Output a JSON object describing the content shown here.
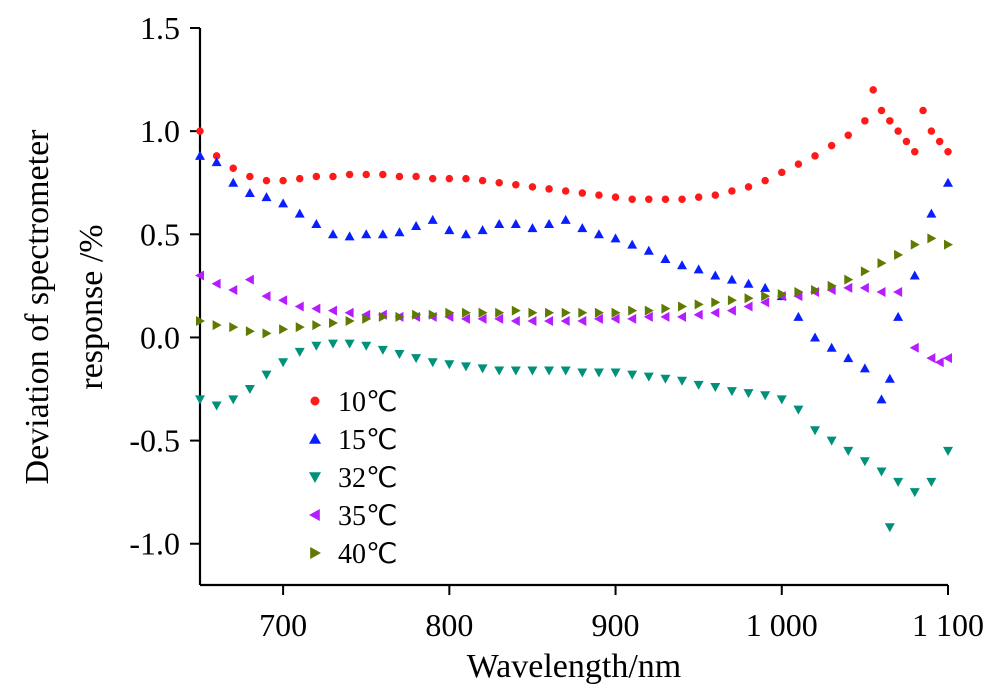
{
  "chart_data": {
    "type": "scatter",
    "title": "",
    "xlabel": "Wavelength/nm",
    "ylabel_lines": [
      "Deviation of spectrometer",
      "response /%"
    ],
    "xlim": [
      650,
      1100
    ],
    "ylim": [
      -1.2,
      1.5
    ],
    "x_ticks": [
      700,
      800,
      900,
      1000,
      1100
    ],
    "x_tick_labels": [
      "700",
      "800",
      "900",
      "1 000",
      "1 100"
    ],
    "y_ticks": [
      1.5,
      1.0,
      0.5,
      0.0,
      -0.5,
      -1.0
    ],
    "y_tick_labels": [
      "1.5",
      "1.0",
      "0.5",
      "0.0",
      "-0.5",
      "-1.0"
    ],
    "grid": false,
    "legend_position": "bottom-left",
    "series": [
      {
        "name": "10℃",
        "marker": "circle",
        "color": "#ff1a1a",
        "x": [
          650,
          660,
          670,
          680,
          690,
          700,
          710,
          720,
          730,
          740,
          750,
          760,
          770,
          780,
          790,
          800,
          810,
          820,
          830,
          840,
          850,
          860,
          870,
          880,
          890,
          900,
          910,
          920,
          930,
          940,
          950,
          960,
          970,
          980,
          990,
          1000,
          1010,
          1020,
          1030,
          1040,
          1050,
          1055,
          1060,
          1065,
          1070,
          1075,
          1080,
          1085,
          1090,
          1095,
          1100
        ],
        "y": [
          1.0,
          0.88,
          0.82,
          0.78,
          0.76,
          0.76,
          0.77,
          0.78,
          0.78,
          0.79,
          0.79,
          0.79,
          0.78,
          0.78,
          0.77,
          0.77,
          0.77,
          0.76,
          0.75,
          0.74,
          0.73,
          0.72,
          0.71,
          0.7,
          0.69,
          0.68,
          0.67,
          0.67,
          0.67,
          0.67,
          0.68,
          0.69,
          0.71,
          0.73,
          0.76,
          0.8,
          0.84,
          0.88,
          0.93,
          0.98,
          1.05,
          1.2,
          1.1,
          1.05,
          1.0,
          0.95,
          0.9,
          1.1,
          1.0,
          0.95,
          0.9
        ]
      },
      {
        "name": "15℃",
        "marker": "triangle-up",
        "color": "#0a1fff",
        "x": [
          650,
          660,
          670,
          680,
          690,
          700,
          710,
          720,
          730,
          740,
          750,
          760,
          770,
          780,
          790,
          800,
          810,
          820,
          830,
          840,
          850,
          860,
          870,
          880,
          890,
          900,
          910,
          920,
          930,
          940,
          950,
          960,
          970,
          980,
          990,
          1000,
          1010,
          1020,
          1030,
          1040,
          1050,
          1060,
          1065,
          1070,
          1080,
          1090,
          1100
        ],
        "y": [
          0.88,
          0.85,
          0.75,
          0.7,
          0.68,
          0.65,
          0.6,
          0.55,
          0.5,
          0.49,
          0.5,
          0.5,
          0.51,
          0.54,
          0.57,
          0.52,
          0.5,
          0.52,
          0.55,
          0.55,
          0.53,
          0.55,
          0.57,
          0.53,
          0.5,
          0.48,
          0.45,
          0.42,
          0.38,
          0.35,
          0.33,
          0.3,
          0.28,
          0.26,
          0.24,
          0.2,
          0.1,
          0.0,
          -0.05,
          -0.1,
          -0.15,
          -0.3,
          -0.2,
          0.1,
          0.3,
          0.6,
          0.75
        ]
      },
      {
        "name": "32℃",
        "marker": "triangle-down",
        "color": "#00917a",
        "x": [
          650,
          660,
          670,
          680,
          690,
          700,
          710,
          720,
          730,
          740,
          750,
          760,
          770,
          780,
          790,
          800,
          810,
          820,
          830,
          840,
          850,
          860,
          870,
          880,
          890,
          900,
          910,
          920,
          930,
          940,
          950,
          960,
          970,
          980,
          990,
          1000,
          1010,
          1020,
          1030,
          1040,
          1050,
          1060,
          1065,
          1070,
          1080,
          1090,
          1100
        ],
        "y": [
          -0.3,
          -0.33,
          -0.3,
          -0.25,
          -0.18,
          -0.12,
          -0.07,
          -0.04,
          -0.03,
          -0.03,
          -0.04,
          -0.06,
          -0.08,
          -0.1,
          -0.12,
          -0.13,
          -0.14,
          -0.15,
          -0.16,
          -0.16,
          -0.16,
          -0.16,
          -0.16,
          -0.17,
          -0.17,
          -0.17,
          -0.18,
          -0.19,
          -0.2,
          -0.21,
          -0.23,
          -0.24,
          -0.26,
          -0.27,
          -0.28,
          -0.3,
          -0.35,
          -0.45,
          -0.5,
          -0.55,
          -0.6,
          -0.65,
          -0.92,
          -0.7,
          -0.75,
          -0.7,
          -0.55
        ]
      },
      {
        "name": "35℃",
        "marker": "triangle-left",
        "color": "#b51cff",
        "x": [
          650,
          660,
          670,
          680,
          690,
          700,
          710,
          720,
          730,
          740,
          750,
          760,
          770,
          780,
          790,
          800,
          810,
          820,
          830,
          840,
          850,
          860,
          870,
          880,
          890,
          900,
          910,
          920,
          930,
          940,
          950,
          960,
          970,
          980,
          990,
          1000,
          1010,
          1020,
          1030,
          1040,
          1050,
          1060,
          1070,
          1080,
          1090,
          1095,
          1100
        ],
        "y": [
          0.3,
          0.26,
          0.23,
          0.28,
          0.2,
          0.18,
          0.15,
          0.14,
          0.13,
          0.12,
          0.11,
          0.11,
          0.1,
          0.1,
          0.1,
          0.1,
          0.09,
          0.09,
          0.09,
          0.08,
          0.08,
          0.08,
          0.08,
          0.08,
          0.09,
          0.09,
          0.09,
          0.1,
          0.1,
          0.1,
          0.11,
          0.12,
          0.13,
          0.15,
          0.17,
          0.2,
          0.2,
          0.22,
          0.23,
          0.24,
          0.24,
          0.22,
          0.22,
          -0.05,
          -0.1,
          -0.12,
          -0.1
        ]
      },
      {
        "name": "40℃",
        "marker": "triangle-right",
        "color": "#5f7a00",
        "x": [
          650,
          660,
          670,
          680,
          690,
          700,
          710,
          720,
          730,
          740,
          750,
          760,
          770,
          780,
          790,
          800,
          810,
          820,
          830,
          840,
          850,
          860,
          870,
          880,
          890,
          900,
          910,
          920,
          930,
          940,
          950,
          960,
          970,
          980,
          990,
          1000,
          1010,
          1020,
          1030,
          1040,
          1050,
          1060,
          1070,
          1080,
          1090,
          1100
        ],
        "y": [
          0.08,
          0.06,
          0.05,
          0.03,
          0.02,
          0.04,
          0.05,
          0.06,
          0.07,
          0.08,
          0.09,
          0.1,
          0.1,
          0.11,
          0.11,
          0.12,
          0.12,
          0.12,
          0.12,
          0.13,
          0.12,
          0.12,
          0.12,
          0.12,
          0.12,
          0.12,
          0.13,
          0.13,
          0.14,
          0.15,
          0.16,
          0.17,
          0.18,
          0.19,
          0.2,
          0.21,
          0.22,
          0.23,
          0.25,
          0.28,
          0.32,
          0.36,
          0.4,
          0.45,
          0.48,
          0.45
        ]
      }
    ]
  }
}
